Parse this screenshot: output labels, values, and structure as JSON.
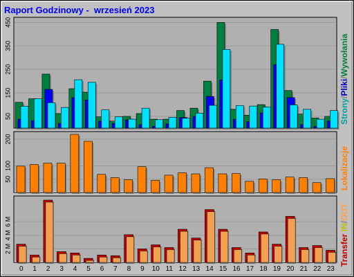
{
  "title": "Raport Godzinowy -  wrzesień 2023",
  "labels": {
    "top": [
      {
        "text": "Strony",
        "color": "#00a0a0"
      },
      {
        "text": "/",
        "color": "#808080"
      },
      {
        "text": "Pliki",
        "color": "#0000c0"
      },
      {
        "text": "/",
        "color": "#808080"
      },
      {
        "text": "Wywołania",
        "color": "#008040"
      }
    ],
    "middle": [
      {
        "text": "Lokalizacje",
        "color": "#ff8000"
      }
    ],
    "bottom": [
      {
        "text": "Transfer",
        "color": "#c00000"
      },
      {
        "text": " ",
        "color": "#808080"
      },
      {
        "text": "IN",
        "color": "#c0c000"
      },
      {
        "text": "/",
        "color": "#808080"
      },
      {
        "text": "OUT",
        "color": "#ffa040"
      }
    ]
  },
  "colors": {
    "hits": "#008040",
    "files": "#0000ff",
    "pages": "#00e0ff",
    "sites": "#ff8000",
    "kbytes": "#c00000",
    "kbytes_front": "#f0a050",
    "panel_bg": "#b0b0b0"
  },
  "chart_data": [
    {
      "type": "bar",
      "name": "hourly-requests",
      "categories": [
        "0",
        "1",
        "2",
        "3",
        "4",
        "5",
        "6",
        "7",
        "8",
        "9",
        "10",
        "11",
        "12",
        "13",
        "14",
        "15",
        "16",
        "17",
        "18",
        "19",
        "20",
        "21",
        "22",
        "23"
      ],
      "ylim": [
        0,
        460
      ],
      "yticks": [
        "50",
        "150",
        "250",
        "350",
        "450"
      ],
      "series": [
        {
          "name": "Wywołania",
          "values": [
            110,
            125,
            230,
            62,
            168,
            153,
            48,
            30,
            50,
            62,
            38,
            38,
            75,
            85,
            200,
            450,
            80,
            55,
            100,
            420,
            160,
            60,
            43,
            50
          ]
        },
        {
          "name": "Pliki",
          "values": [
            38,
            32,
            165,
            20,
            130,
            120,
            30,
            20,
            35,
            15,
            8,
            18,
            45,
            50,
            135,
            205,
            38,
            28,
            65,
            270,
            130,
            15,
            7,
            30
          ]
        },
        {
          "name": "Strony",
          "values": [
            93,
            125,
            108,
            88,
            206,
            195,
            78,
            48,
            38,
            85,
            36,
            46,
            42,
            64,
            97,
            335,
            96,
            94,
            90,
            357,
            99,
            80,
            38,
            75
          ]
        }
      ]
    },
    {
      "type": "bar",
      "name": "hourly-locations",
      "categories": [
        "0",
        "1",
        "2",
        "3",
        "4",
        "5",
        "6",
        "7",
        "8",
        "9",
        "10",
        "11",
        "12",
        "13",
        "14",
        "15",
        "16",
        "17",
        "18",
        "19",
        "20",
        "21",
        "22",
        "23"
      ],
      "ylim": [
        0,
        218
      ],
      "yticks": [
        "50",
        "100",
        "200"
      ],
      "series": [
        {
          "name": "Lokalizacje",
          "values": [
            99,
            105,
            110,
            110,
            218,
            192,
            68,
            56,
            48,
            97,
            46,
            65,
            74,
            70,
            93,
            70,
            71,
            42,
            51,
            48,
            58,
            56,
            37,
            52
          ]
        }
      ]
    },
    {
      "type": "bar",
      "name": "hourly-transfer",
      "categories": [
        "0",
        "1",
        "2",
        "3",
        "4",
        "5",
        "6",
        "7",
        "8",
        "9",
        "10",
        "11",
        "12",
        "13",
        "14",
        "15",
        "16",
        "17",
        "18",
        "19",
        "20",
        "21",
        "22",
        "23"
      ],
      "ylim": [
        0,
        9.4
      ],
      "yticks": [
        "2 M",
        "4 M",
        "6 M"
      ],
      "series": [
        {
          "name": "Transfer",
          "values": [
            2.7,
            1.1,
            9.2,
            1.6,
            1.4,
            0.6,
            1.1,
            1.0,
            4.1,
            2.0,
            2.6,
            2.2,
            4.9,
            3.6,
            7.8,
            4.9,
            2.2,
            1.4,
            4.5,
            2.7,
            6.8,
            2.2,
            2.5,
            1.8
          ]
        }
      ]
    }
  ]
}
